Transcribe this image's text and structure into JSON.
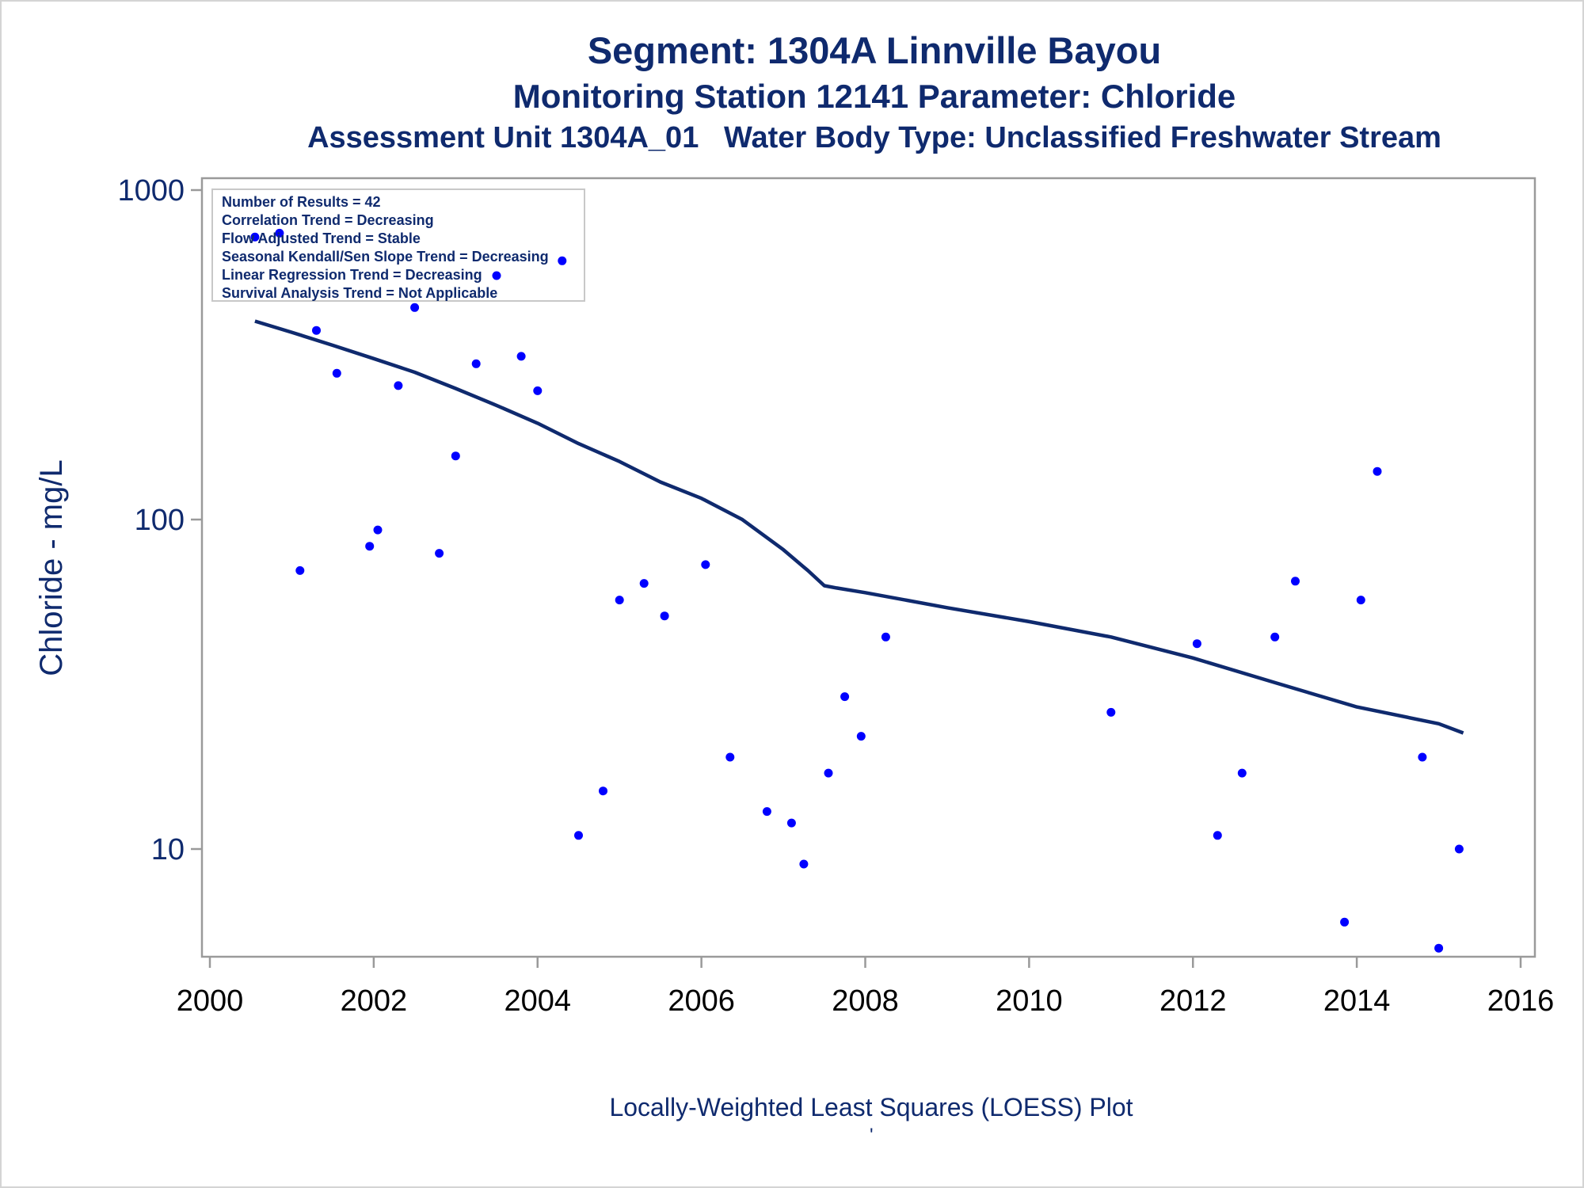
{
  "chart_data": {
    "type": "scatter",
    "title": "Segment: 1304A  Linnville Bayou",
    "subtitle": "Monitoring Station 12141 Parameter: Chloride",
    "subtitle2": "Assessment Unit 1304A_01   Water Body Type: Unclassified Freshwater Stream",
    "xlabel": "",
    "ylabel": "Chloride - mg/L",
    "footnote": "Locally-Weighted Least Squares (LOESS) Plot",
    "footnote_mark": "'",
    "xlim": [
      2000,
      2016
    ],
    "ylim": [
      4.7,
      1000
    ],
    "yscale": "log",
    "xticks": [
      "2000",
      "2002",
      "2004",
      "2006",
      "2008",
      "2010",
      "2012",
      "2014",
      "2016"
    ],
    "yticks": [
      "10",
      "100",
      "1000"
    ],
    "grid": false,
    "legend": "none",
    "stats_box": {
      "placement": "top-left",
      "lines": [
        "Number of Results = 42",
        "Correlation Trend = Decreasing",
        "Flow Adjusted Trend = Stable",
        "Seasonal Kendall/Sen Slope Trend = Decreasing",
        "Linear Regression Trend = Decreasing",
        "Survival Analysis Trend = Not Applicable"
      ]
    },
    "points": [
      {
        "x": 2000.55,
        "y": 720
      },
      {
        "x": 2000.85,
        "y": 740
      },
      {
        "x": 2001.1,
        "y": 70
      },
      {
        "x": 2001.3,
        "y": 375
      },
      {
        "x": 2001.55,
        "y": 278
      },
      {
        "x": 2001.95,
        "y": 83
      },
      {
        "x": 2002.05,
        "y": 93
      },
      {
        "x": 2002.3,
        "y": 255
      },
      {
        "x": 2002.5,
        "y": 440
      },
      {
        "x": 2002.8,
        "y": 79
      },
      {
        "x": 2003.0,
        "y": 156
      },
      {
        "x": 2003.25,
        "y": 297
      },
      {
        "x": 2003.5,
        "y": 550
      },
      {
        "x": 2003.8,
        "y": 313
      },
      {
        "x": 2004.0,
        "y": 246
      },
      {
        "x": 2004.3,
        "y": 610
      },
      {
        "x": 2004.5,
        "y": 11
      },
      {
        "x": 2004.8,
        "y": 15
      },
      {
        "x": 2005.0,
        "y": 57
      },
      {
        "x": 2005.3,
        "y": 64
      },
      {
        "x": 2005.55,
        "y": 51
      },
      {
        "x": 2006.05,
        "y": 73
      },
      {
        "x": 2006.35,
        "y": 19
      },
      {
        "x": 2006.8,
        "y": 13
      },
      {
        "x": 2007.1,
        "y": 12
      },
      {
        "x": 2007.25,
        "y": 9
      },
      {
        "x": 2007.55,
        "y": 17
      },
      {
        "x": 2007.75,
        "y": 29
      },
      {
        "x": 2007.95,
        "y": 22
      },
      {
        "x": 2008.25,
        "y": 44
      },
      {
        "x": 2011.0,
        "y": 26
      },
      {
        "x": 2012.05,
        "y": 42
      },
      {
        "x": 2012.3,
        "y": 11
      },
      {
        "x": 2012.6,
        "y": 17
      },
      {
        "x": 2013.0,
        "y": 44
      },
      {
        "x": 2013.25,
        "y": 65
      },
      {
        "x": 2013.85,
        "y": 6
      },
      {
        "x": 2014.05,
        "y": 57
      },
      {
        "x": 2014.25,
        "y": 140
      },
      {
        "x": 2014.8,
        "y": 19
      },
      {
        "x": 2015.0,
        "y": 5
      },
      {
        "x": 2015.25,
        "y": 10
      }
    ],
    "series": [
      {
        "type": "line",
        "x": [
          2000.55,
          2001,
          2001.5,
          2002,
          2002.5,
          2003,
          2003.5,
          2004,
          2004.5,
          2005,
          2005.5,
          2006,
          2006.5,
          2007,
          2007.3,
          2007.5,
          2007.65,
          2008,
          2009,
          2010,
          2011,
          2012,
          2013,
          2014,
          2015,
          2015.3
        ],
        "y": [
          400,
          370,
          338,
          308,
          280,
          250,
          222,
          196,
          170,
          150,
          130,
          116,
          100,
          81,
          70,
          63,
          62,
          60,
          54,
          49,
          44,
          38,
          32,
          27,
          24,
          22.5
        ]
      }
    ]
  }
}
